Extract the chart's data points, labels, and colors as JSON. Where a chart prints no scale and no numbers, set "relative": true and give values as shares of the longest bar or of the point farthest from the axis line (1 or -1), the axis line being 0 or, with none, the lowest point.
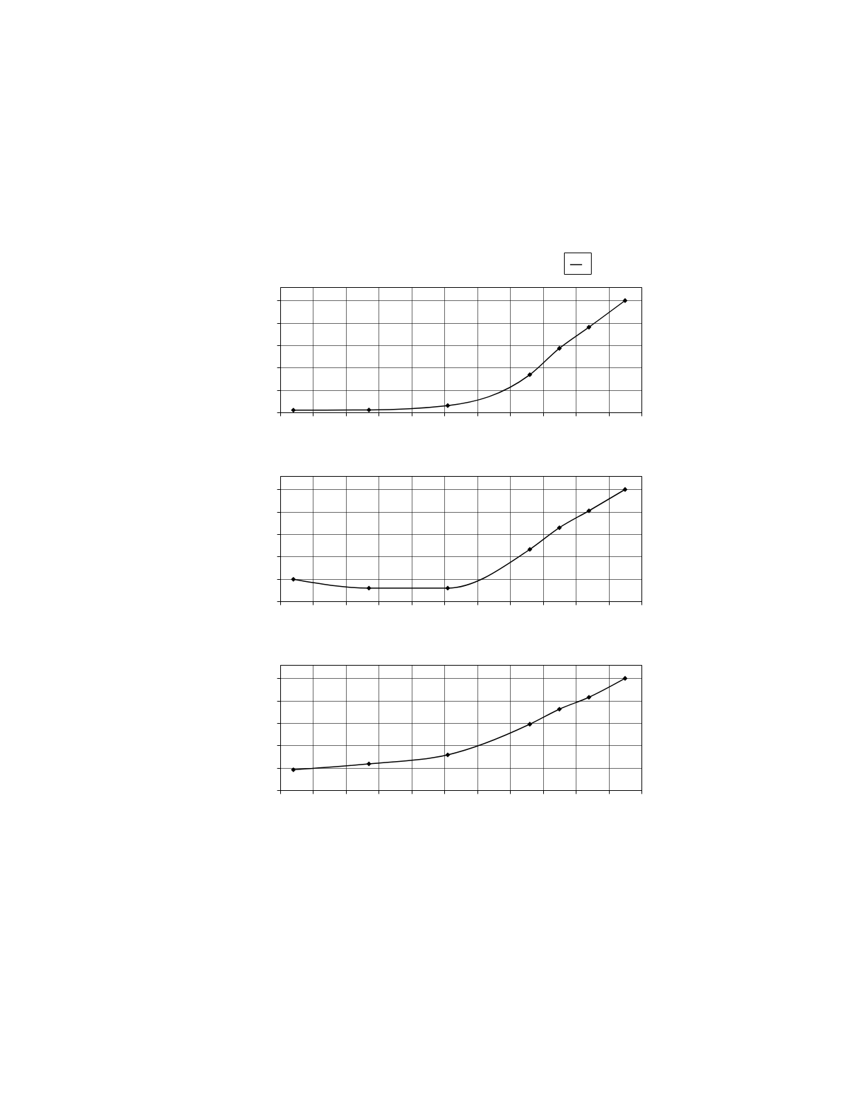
{
  "chart_data": [
    {
      "type": "line",
      "relative": true,
      "grid": true,
      "marker": "diamond",
      "categories": [
        null,
        null,
        null,
        null,
        null,
        null,
        null,
        null,
        null,
        null,
        null,
        null,
        null,
        null,
        null,
        null,
        null,
        null,
        null,
        null,
        null,
        null,
        null,
        null,
        null,
        null,
        null,
        null,
        null,
        null,
        null,
        null,
        null,
        null,
        null,
        null,
        null,
        null,
        null,
        null,
        null,
        null,
        null,
        null,
        null,
        null,
        null,
        null,
        null,
        null,
        null,
        null,
        null,
        null,
        null,
        null,
        null,
        null,
        null,
        null,
        null,
        null,
        null,
        null,
        null,
        null,
        null,
        null,
        null,
        null,
        null,
        null,
        null,
        null,
        null,
        null,
        null,
        null,
        null,
        null,
        null,
        null,
        null,
        null,
        null,
        null,
        null,
        null,
        null,
        null,
        null,
        null,
        null,
        null,
        null,
        null,
        null,
        null,
        null,
        null,
        null,
        null,
        null,
        null,
        null,
        null,
        null,
        null,
        null,
        null,
        null
      ],
      "series": [
        {
          "color": "#000000",
          "values": [
            null,
            null,
            null,
            null,
            0.02,
            null,
            null,
            null,
            null,
            null,
            null,
            null,
            null,
            null,
            null,
            null,
            null,
            null,
            null,
            null,
            null,
            null,
            null,
            null,
            null,
            null,
            null,
            0.022,
            null,
            null,
            null,
            null,
            null,
            null,
            null,
            null,
            null,
            null,
            null,
            null,
            null,
            null,
            null,
            null,
            null,
            null,
            null,
            null,
            null,
            null,
            null,
            0.061,
            null,
            null,
            null,
            null,
            null,
            null,
            null,
            null,
            null,
            null,
            null,
            null,
            null,
            null,
            null,
            null,
            null,
            null,
            null,
            null,
            null,
            null,
            null,
            null,
            0.337,
            null,
            null,
            null,
            null,
            null,
            null,
            null,
            null,
            0.573,
            null,
            null,
            null,
            null,
            null,
            null,
            null,
            null,
            0.762,
            null,
            null,
            null,
            null,
            null,
            null,
            null,
            null,
            null,
            null,
            1,
            null,
            null,
            null,
            null,
            null
          ]
        }
      ]
    },
    {
      "type": "line",
      "relative": true,
      "grid": true,
      "marker": "diamond",
      "categories": [
        null,
        null,
        null,
        null,
        null,
        null,
        null,
        null,
        null,
        null,
        null,
        null,
        null,
        null,
        null,
        null,
        null,
        null,
        null,
        null,
        null,
        null,
        null,
        null,
        null,
        null,
        null,
        null,
        null,
        null,
        null,
        null,
        null,
        null,
        null,
        null,
        null,
        null,
        null,
        null,
        null,
        null,
        null,
        null,
        null,
        null,
        null,
        null,
        null,
        null,
        null,
        null,
        null,
        null,
        null,
        null,
        null,
        null,
        null,
        null,
        null,
        null,
        null,
        null,
        null,
        null,
        null,
        null,
        null,
        null,
        null,
        null,
        null,
        null,
        null,
        null,
        null,
        null,
        null,
        null,
        null,
        null,
        null,
        null,
        null,
        null,
        null,
        null,
        null,
        null,
        null,
        null,
        null,
        null,
        null,
        null,
        null,
        null,
        null,
        null,
        null,
        null,
        null,
        null,
        null,
        null,
        null,
        null,
        null,
        null,
        null
      ],
      "series": [
        {
          "color": "#000000",
          "values": [
            null,
            null,
            null,
            null,
            0.196,
            null,
            null,
            null,
            null,
            null,
            null,
            null,
            null,
            null,
            null,
            null,
            null,
            null,
            null,
            null,
            null,
            null,
            null,
            null,
            null,
            null,
            null,
            0.118,
            null,
            null,
            null,
            null,
            null,
            null,
            null,
            null,
            null,
            null,
            null,
            null,
            null,
            null,
            null,
            null,
            null,
            null,
            null,
            null,
            null,
            null,
            null,
            0.118,
            null,
            null,
            null,
            null,
            null,
            null,
            null,
            null,
            null,
            null,
            null,
            null,
            null,
            null,
            null,
            null,
            null,
            null,
            null,
            null,
            null,
            null,
            null,
            null,
            0.464,
            null,
            null,
            null,
            null,
            null,
            null,
            null,
            null,
            0.658,
            null,
            null,
            null,
            null,
            null,
            null,
            null,
            null,
            0.809,
            null,
            null,
            null,
            null,
            null,
            null,
            null,
            null,
            null,
            null,
            1,
            null,
            null,
            null,
            null,
            null
          ]
        }
      ]
    },
    {
      "type": "line",
      "relative": true,
      "grid": true,
      "marker": "diamond",
      "categories": [
        null,
        null,
        null,
        null,
        null,
        null,
        null,
        null,
        null,
        null,
        null,
        null,
        null,
        null,
        null,
        null,
        null,
        null,
        null,
        null,
        null,
        null,
        null,
        null,
        null,
        null,
        null,
        null,
        null,
        null,
        null,
        null,
        null,
        null,
        null,
        null,
        null,
        null,
        null,
        null,
        null,
        null,
        null,
        null,
        null,
        null,
        null,
        null,
        null,
        null,
        null,
        null,
        null,
        null,
        null,
        null,
        null,
        null,
        null,
        null,
        null,
        null,
        null,
        null,
        null,
        null,
        null,
        null,
        null,
        null,
        null,
        null,
        null,
        null,
        null,
        null,
        null,
        null,
        null,
        null,
        null,
        null,
        null,
        null,
        null,
        null,
        null,
        null,
        null,
        null,
        null,
        null,
        null,
        null,
        null,
        null,
        null,
        null,
        null,
        null,
        null,
        null,
        null,
        null,
        null,
        null,
        null,
        null,
        null,
        null,
        null
      ],
      "series": [
        {
          "color": "#000000",
          "values": [
            null,
            null,
            null,
            null,
            0.182,
            null,
            null,
            null,
            null,
            null,
            null,
            null,
            null,
            null,
            null,
            null,
            null,
            null,
            null,
            null,
            null,
            null,
            null,
            null,
            null,
            null,
            null,
            0.235,
            null,
            null,
            null,
            null,
            null,
            null,
            null,
            null,
            null,
            null,
            null,
            null,
            null,
            null,
            null,
            null,
            null,
            null,
            null,
            null,
            null,
            null,
            null,
            0.316,
            null,
            null,
            null,
            null,
            null,
            null,
            null,
            null,
            null,
            null,
            null,
            null,
            null,
            null,
            null,
            null,
            null,
            null,
            null,
            null,
            null,
            null,
            null,
            null,
            0.59,
            null,
            null,
            null,
            null,
            null,
            null,
            null,
            null,
            0.724,
            null,
            null,
            null,
            null,
            null,
            null,
            null,
            null,
            0.831,
            null,
            null,
            null,
            null,
            null,
            null,
            null,
            null,
            null,
            null,
            1,
            null,
            null,
            null,
            null,
            null
          ]
        }
      ]
    }
  ]
}
